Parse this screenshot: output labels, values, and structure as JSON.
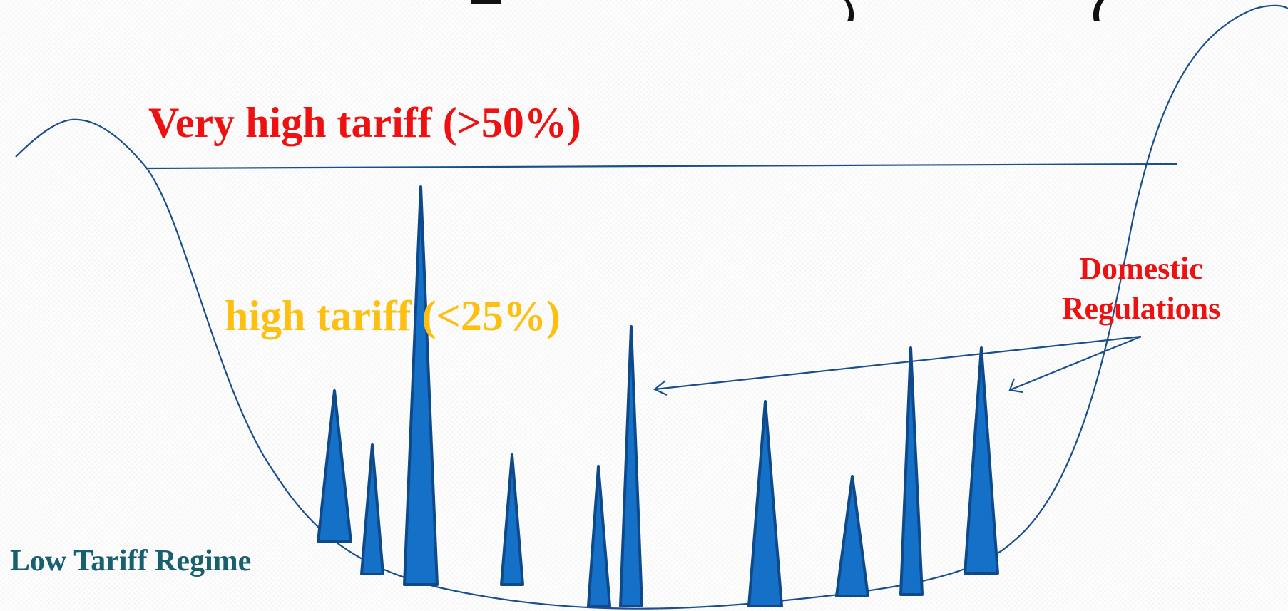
{
  "labels": {
    "very_high_tariff": "Very high tariff (>50%)",
    "high_tariff": "high tariff (<25%)",
    "domestic_regulations_line1": "Domestic",
    "domestic_regulations_line2": "Regulations",
    "low_tariff_regime": "Low Tariff Regime"
  },
  "colors": {
    "very_high_tariff": "#ee1111",
    "high_tariff": "#fdc010",
    "domestic_regulations": "#ee1111",
    "low_tariff_regime": "#17606e",
    "curve": "#1a4f8f",
    "spike_fill": "#1570c8",
    "spike_stroke": "#0e4a8a",
    "title_partial": "#111111"
  }
}
